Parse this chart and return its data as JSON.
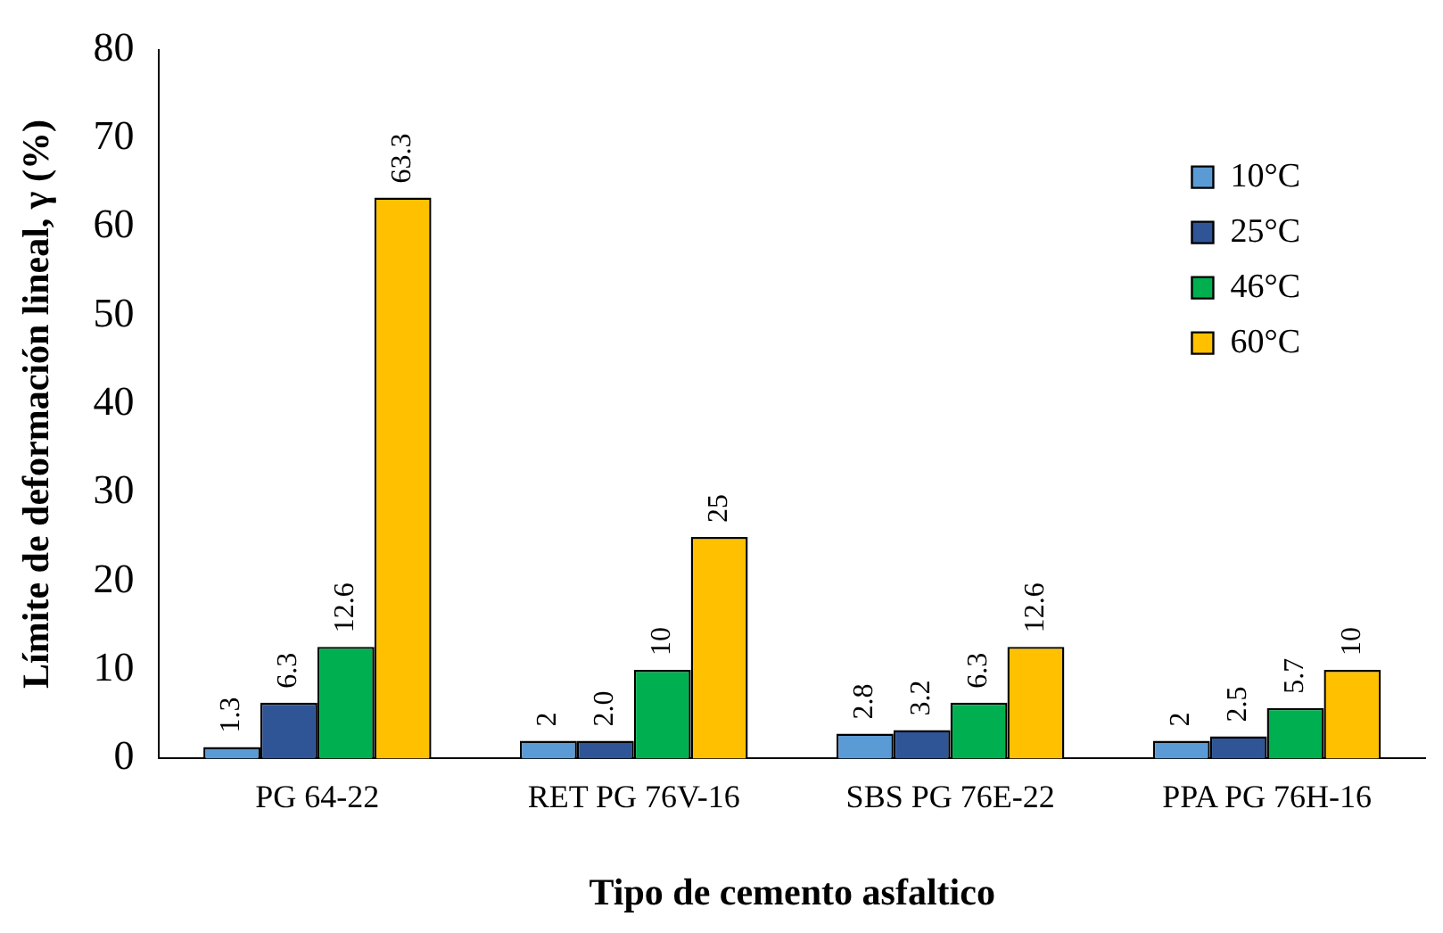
{
  "chart_data": {
    "type": "bar",
    "xlabel": "Tipo de cemento asfaltico",
    "ylabel": "Límite de deformación lineal, γ (%)",
    "categories": [
      "PG 64-22",
      "RET PG 76V-16",
      "SBS PG 76E-22",
      "PPA PG 76H-16"
    ],
    "series": [
      {
        "name": "10°C",
        "color": "#5b9bd5",
        "values": [
          1.3,
          2,
          2.8,
          2
        ],
        "value_labels": [
          "1.3",
          "2",
          "2.8",
          "2"
        ]
      },
      {
        "name": "25°C",
        "color": "#2f5597",
        "values": [
          6.3,
          2.0,
          3.2,
          2.5
        ],
        "value_labels": [
          "6.3",
          "2.0",
          "3.2",
          "2.5"
        ]
      },
      {
        "name": "46°C",
        "color": "#00b050",
        "values": [
          12.6,
          10,
          6.3,
          5.7
        ],
        "value_labels": [
          "12.6",
          "10",
          "6.3",
          "5.7"
        ]
      },
      {
        "name": "60°C",
        "color": "#ffc000",
        "values": [
          63.3,
          25,
          12.6,
          10
        ],
        "value_labels": [
          "63.3",
          "25",
          "12.6",
          "10"
        ]
      }
    ],
    "ylim": [
      0,
      80
    ],
    "yticks": [
      0,
      10,
      20,
      30,
      40,
      50,
      60,
      70,
      80
    ],
    "grid": false,
    "legend": "top right"
  }
}
